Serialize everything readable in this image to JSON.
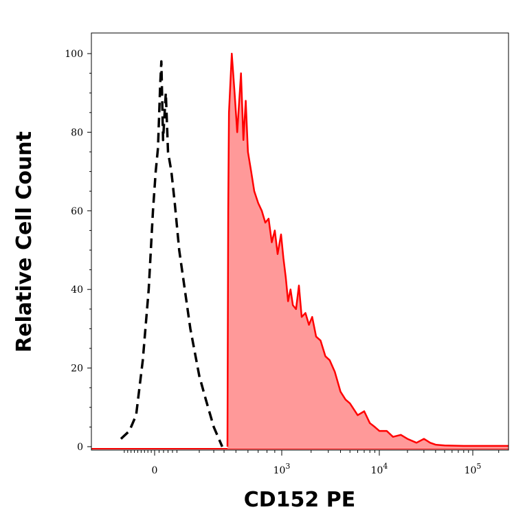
{
  "chart_data": {
    "type": "area",
    "xlabel": "CD152 PE",
    "ylabel": "Relative Cell Count",
    "x_scale": "biexponential",
    "x_ticks": [
      {
        "value": 0,
        "base": "0",
        "exp": ""
      },
      {
        "value": 1000,
        "base": "10",
        "exp": "3"
      },
      {
        "value": 10000,
        "base": "10",
        "exp": "4"
      },
      {
        "value": 100000,
        "base": "10",
        "exp": "5"
      }
    ],
    "y_ticks": [
      0,
      20,
      40,
      60,
      80,
      100
    ],
    "ylim": [
      0,
      100
    ],
    "grid": false,
    "series": [
      {
        "style": "dashed-black-outline",
        "color": "#000000",
        "points": [
          [
            -200,
            2
          ],
          [
            -150,
            4
          ],
          [
            -110,
            8
          ],
          [
            -70,
            22
          ],
          [
            -35,
            40
          ],
          [
            -10,
            60
          ],
          [
            5,
            70
          ],
          [
            15,
            76
          ],
          [
            25,
            92
          ],
          [
            30,
            98
          ],
          [
            38,
            78
          ],
          [
            50,
            90
          ],
          [
            60,
            75
          ],
          [
            75,
            70
          ],
          [
            90,
            62
          ],
          [
            110,
            50
          ],
          [
            130,
            42
          ],
          [
            160,
            30
          ],
          [
            200,
            18
          ],
          [
            240,
            12
          ],
          [
            300,
            5
          ],
          [
            380,
            0
          ]
        ]
      },
      {
        "style": "filled-red",
        "color": "#ff0000",
        "fill": "#ff9999",
        "points": [
          [
            440,
            0
          ],
          [
            445,
            60
          ],
          [
            450,
            85
          ],
          [
            470,
            100
          ],
          [
            490,
            90
          ],
          [
            510,
            80
          ],
          [
            540,
            95
          ],
          [
            560,
            78
          ],
          [
            580,
            88
          ],
          [
            600,
            75
          ],
          [
            630,
            70
          ],
          [
            660,
            65
          ],
          [
            700,
            62
          ],
          [
            740,
            60
          ],
          [
            780,
            57
          ],
          [
            820,
            58
          ],
          [
            860,
            52
          ],
          [
            900,
            55
          ],
          [
            940,
            49
          ],
          [
            990,
            54
          ],
          [
            1040,
            48
          ],
          [
            1100,
            43
          ],
          [
            1160,
            37
          ],
          [
            1230,
            40
          ],
          [
            1300,
            36
          ],
          [
            1400,
            35
          ],
          [
            1500,
            41
          ],
          [
            1600,
            33
          ],
          [
            1750,
            34
          ],
          [
            1900,
            31
          ],
          [
            2050,
            33
          ],
          [
            2250,
            28
          ],
          [
            2500,
            27
          ],
          [
            2800,
            23
          ],
          [
            3100,
            22
          ],
          [
            3500,
            19
          ],
          [
            4000,
            14
          ],
          [
            4500,
            12
          ],
          [
            5000,
            11
          ],
          [
            6000,
            8
          ],
          [
            7000,
            9
          ],
          [
            8000,
            6
          ],
          [
            9000,
            5
          ],
          [
            10000,
            4
          ],
          [
            12000,
            4
          ],
          [
            14000,
            2.5
          ],
          [
            17000,
            3
          ],
          [
            20000,
            2
          ],
          [
            25000,
            1
          ],
          [
            30000,
            2
          ],
          [
            35000,
            1
          ],
          [
            40000,
            0.5
          ],
          [
            50000,
            0.3
          ],
          [
            80000,
            0.2
          ],
          [
            150000,
            0.2
          ],
          [
            260000,
            0.2
          ]
        ]
      }
    ]
  }
}
